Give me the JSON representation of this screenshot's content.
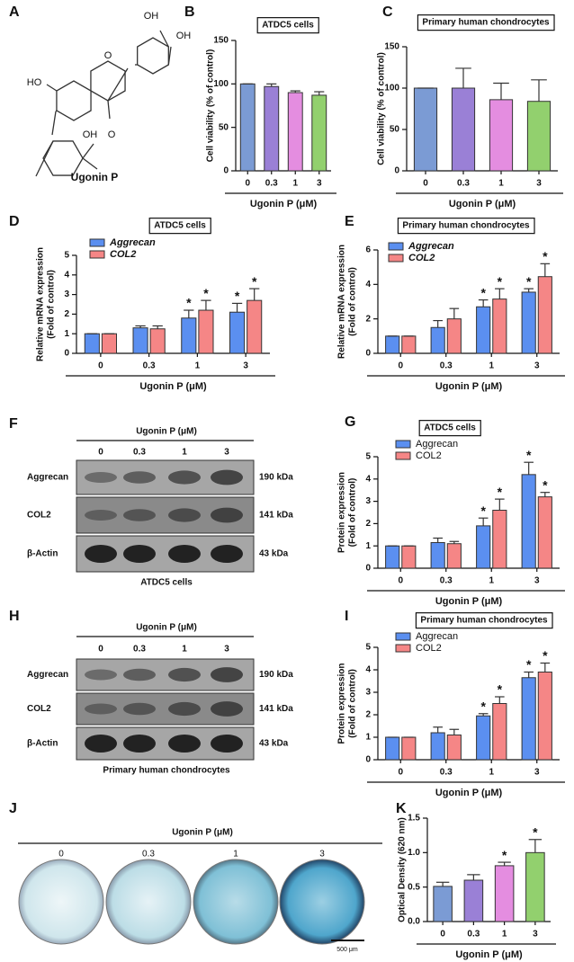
{
  "structure": {
    "panel": "A",
    "name": "Ugonin P",
    "atoms": [
      "OH",
      "OH",
      "HO",
      "O",
      "OH",
      "O"
    ]
  },
  "blot_f": {
    "panel": "F",
    "header": "Ugonin P (μM)",
    "lanes": [
      "0",
      "0.3",
      "1",
      "3"
    ],
    "rows": [
      {
        "name": "Aggrecan",
        "size": "190 kDa"
      },
      {
        "name": "COL2",
        "size": "141 kDa"
      },
      {
        "name": "β-Actin",
        "size": "43 kDa"
      }
    ],
    "caption": "ATDC5 cells"
  },
  "blot_h": {
    "panel": "H",
    "header": "Ugonin P (μM)",
    "lanes": [
      "0",
      "0.3",
      "1",
      "3"
    ],
    "rows": [
      {
        "name": "Aggrecan",
        "size": "190 kDa"
      },
      {
        "name": "COL2",
        "size": "141 kDa"
      },
      {
        "name": "β-Actin",
        "size": "43 kDa"
      }
    ],
    "caption": "Primary human chondrocytes"
  },
  "staining": {
    "panel": "J",
    "header": "Ugonin P (μM)",
    "wells": [
      "0",
      "0.3",
      "1",
      "3"
    ],
    "scale": "500 μm"
  },
  "chart_data": [
    {
      "type": "bar",
      "panel": "B",
      "title": "ATDC5 cells",
      "ylabel": [
        "Cell viability (% of control)"
      ],
      "xlabel": "Ugonin P (μM)",
      "categories": [
        "0",
        "0.3",
        "1",
        "3"
      ],
      "values": [
        100,
        97,
        90,
        87
      ],
      "errors": [
        0,
        3,
        2,
        4
      ],
      "colors": [
        "#7b9bd4",
        "#9a80d6",
        "#e48de0",
        "#92d06e"
      ],
      "ylim": [
        0,
        150
      ],
      "yticks": [
        0,
        50,
        100,
        150
      ]
    },
    {
      "type": "bar",
      "panel": "C",
      "title": "Primary human chondrocytes",
      "ylabel": [
        "Cell viability (% of control)"
      ],
      "xlabel": "Ugonin P (μM)",
      "categories": [
        "0",
        "0.3",
        "1",
        "3"
      ],
      "values": [
        100,
        100,
        86,
        84
      ],
      "errors": [
        0,
        24,
        20,
        26
      ],
      "colors": [
        "#7b9bd4",
        "#9a80d6",
        "#e48de0",
        "#92d06e"
      ],
      "ylim": [
        0,
        150
      ],
      "yticks": [
        0,
        50,
        100,
        150
      ]
    },
    {
      "type": "grouped_bar",
      "panel": "D",
      "title": "ATDC5 cells",
      "ylabel": [
        "Relative mRNA expression",
        "(Fold of control)"
      ],
      "xlabel": "Ugonin P (μM)",
      "categories": [
        "0",
        "0.3",
        "1",
        "3"
      ],
      "legend": "upper left",
      "legend_italic": true,
      "series": [
        {
          "name": "Aggrecan",
          "color": "#5b8ff0",
          "values": [
            1,
            1.3,
            1.8,
            2.1
          ],
          "errors": [
            0,
            0.1,
            0.4,
            0.45
          ],
          "significance": [
            null,
            null,
            "*",
            "*"
          ]
        },
        {
          "name": "COL2",
          "color": "#f58686",
          "values": [
            1,
            1.25,
            2.2,
            2.7
          ],
          "errors": [
            0,
            0.15,
            0.5,
            0.6
          ],
          "significance": [
            null,
            null,
            "*",
            "*"
          ]
        }
      ],
      "ylim": [
        0,
        5
      ],
      "yticks": [
        0,
        1,
        2,
        3,
        4,
        5
      ]
    },
    {
      "type": "grouped_bar",
      "panel": "E",
      "title": "Primary human chondrocytes",
      "ylabel": [
        "Relative mRNA expression",
        "(Fold of control)"
      ],
      "xlabel": "Ugonin P (μM)",
      "categories": [
        "0",
        "0.3",
        "1",
        "3"
      ],
      "legend": "upper left",
      "legend_italic": true,
      "series": [
        {
          "name": "Aggrecan",
          "color": "#5b8ff0",
          "values": [
            1,
            1.5,
            2.7,
            3.55
          ],
          "errors": [
            0,
            0.4,
            0.4,
            0.2
          ],
          "significance": [
            null,
            null,
            "*",
            "*"
          ]
        },
        {
          "name": "COL2",
          "color": "#f58686",
          "values": [
            1,
            2,
            3.15,
            4.45
          ],
          "errors": [
            0,
            0.6,
            0.6,
            0.75
          ],
          "significance": [
            null,
            null,
            "*",
            "*"
          ]
        }
      ],
      "ylim": [
        0,
        6
      ],
      "yticks": [
        0,
        2,
        4,
        6
      ]
    },
    {
      "type": "grouped_bar",
      "panel": "G",
      "title": "ATDC5 cells",
      "ylabel": [
        "Protein expression",
        "(Fold of control)"
      ],
      "xlabel": "Ugonin P (μM)",
      "categories": [
        "0",
        "0.3",
        "1",
        "3"
      ],
      "legend": "upper left",
      "legend_italic": false,
      "series": [
        {
          "name": "Aggrecan",
          "color": "#5b8ff0",
          "values": [
            1,
            1.15,
            1.9,
            4.2
          ],
          "errors": [
            0,
            0.2,
            0.35,
            0.55
          ],
          "significance": [
            null,
            null,
            "*",
            "*"
          ]
        },
        {
          "name": "COL2",
          "color": "#f58686",
          "values": [
            1,
            1.1,
            2.6,
            3.2
          ],
          "errors": [
            0,
            0.1,
            0.5,
            0.2
          ],
          "significance": [
            null,
            null,
            "*",
            "*"
          ]
        }
      ],
      "ylim": [
        0,
        5
      ],
      "yticks": [
        0,
        1,
        2,
        3,
        4,
        5
      ]
    },
    {
      "type": "grouped_bar",
      "panel": "I",
      "title": "Primary human chondrocytes",
      "ylabel": [
        "Protein expression",
        "(Fold of control)"
      ],
      "xlabel": "Ugonin P (μM)",
      "categories": [
        "0",
        "0.3",
        "1",
        "3"
      ],
      "legend": "upper left",
      "legend_italic": false,
      "series": [
        {
          "name": "Aggrecan",
          "color": "#5b8ff0",
          "values": [
            1,
            1.2,
            1.95,
            3.65
          ],
          "errors": [
            0,
            0.25,
            0.1,
            0.25
          ],
          "significance": [
            null,
            null,
            "*",
            "*"
          ]
        },
        {
          "name": "COL2",
          "color": "#f58686",
          "values": [
            1,
            1.1,
            2.5,
            3.9
          ],
          "errors": [
            0,
            0.25,
            0.3,
            0.4
          ],
          "significance": [
            null,
            null,
            "*",
            "*"
          ]
        }
      ],
      "ylim": [
        0,
        5
      ],
      "yticks": [
        0,
        1,
        2,
        3,
        4,
        5
      ]
    },
    {
      "type": "bar",
      "panel": "K",
      "ylabel": [
        "Optical Density (620 nm)"
      ],
      "xlabel": "Ugonin P (μM)",
      "categories": [
        "0",
        "0.3",
        "1",
        "3"
      ],
      "values": [
        0.51,
        0.6,
        0.81,
        1.0
      ],
      "errors": [
        0.06,
        0.08,
        0.05,
        0.19
      ],
      "significance": [
        null,
        null,
        "*",
        "*"
      ],
      "colors": [
        "#7b9bd4",
        "#9a80d6",
        "#e48de0",
        "#92d06e"
      ],
      "ylim": [
        0,
        1.5
      ],
      "yticks": [
        {
          "value": 0,
          "label": "0.0"
        },
        0.5,
        {
          "value": 1,
          "label": "1.0"
        },
        1.5
      ]
    }
  ]
}
